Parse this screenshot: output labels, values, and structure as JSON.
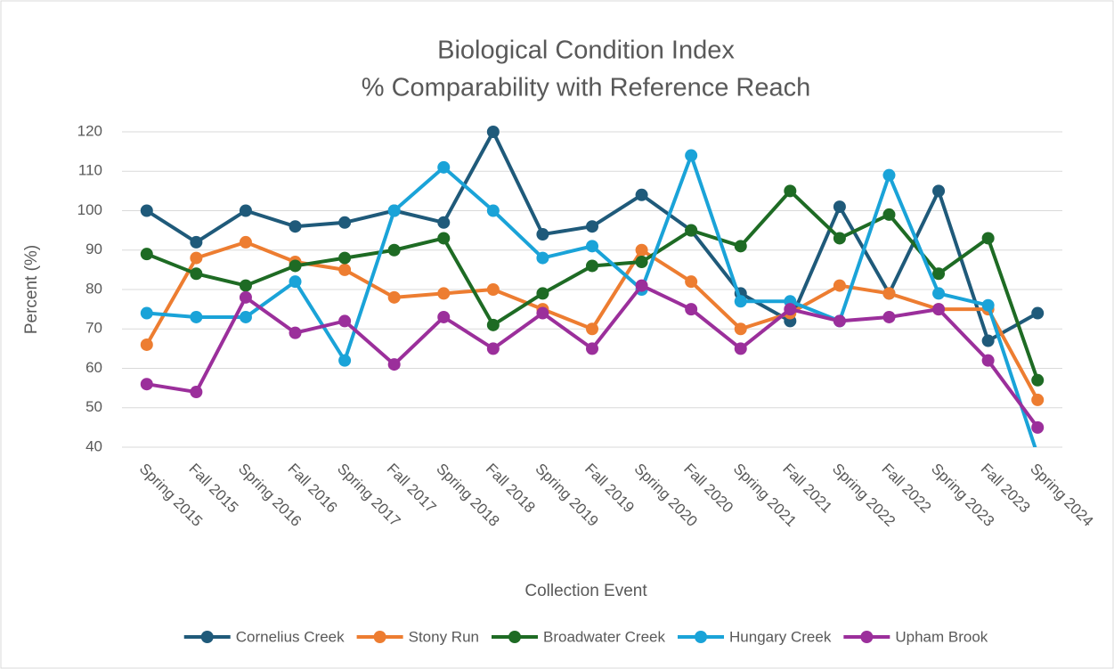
{
  "chart_data": {
    "type": "line",
    "title": "Biological Condition Index",
    "subtitle": "% Comparability with Reference Reach",
    "x_label": "Collection Event",
    "y_label": "Percent (%)",
    "categories": [
      "Spring 2015",
      "Fall 2015",
      "Spring 2016",
      "Fall 2016",
      "Spring 2017",
      "Fall 2017",
      "Spring 2018",
      "Fall 2018",
      "Spring 2019",
      "Fall 2019",
      "Spring 2020",
      "Fall 2020",
      "Spring 2021",
      "Fall 2021",
      "Spring 2022",
      "Fall 2022",
      "Spring 2023",
      "Fall 2023",
      "Spring 2024"
    ],
    "series": [
      {
        "name": "Cornelius Creek",
        "color": "#1f5a7a",
        "values": [
          100,
          92,
          100,
          96,
          97,
          100,
          97,
          120,
          94,
          96,
          104,
          95,
          79,
          72,
          101,
          79,
          105,
          67,
          74
        ]
      },
      {
        "name": "Stony Run",
        "color": "#ed7d31",
        "values": [
          66,
          88,
          92,
          87,
          85,
          78,
          79,
          80,
          75,
          70,
          90,
          82,
          70,
          74,
          81,
          79,
          75,
          75,
          52
        ]
      },
      {
        "name": "Broadwater Creek",
        "color": "#1e6b24",
        "values": [
          89,
          84,
          81,
          86,
          88,
          90,
          93,
          71,
          79,
          86,
          87,
          95,
          91,
          105,
          93,
          99,
          84,
          93,
          57
        ]
      },
      {
        "name": "Hungary Creek",
        "color": "#1aa3d8",
        "values": [
          74,
          73,
          73,
          82,
          62,
          100,
          111,
          100,
          88,
          91,
          80,
          114,
          77,
          77,
          72,
          109,
          79,
          76,
          38
        ]
      },
      {
        "name": "Upham Brook",
        "color": "#9b2f9b",
        "values": [
          56,
          54,
          78,
          69,
          72,
          61,
          73,
          65,
          74,
          65,
          81,
          75,
          65,
          75,
          72,
          73,
          75,
          62,
          45
        ]
      }
    ],
    "ylim": [
      40,
      120
    ],
    "yticks": [
      40,
      50,
      60,
      70,
      80,
      90,
      100,
      110,
      120
    ],
    "grid": true,
    "legend": "bottom"
  }
}
